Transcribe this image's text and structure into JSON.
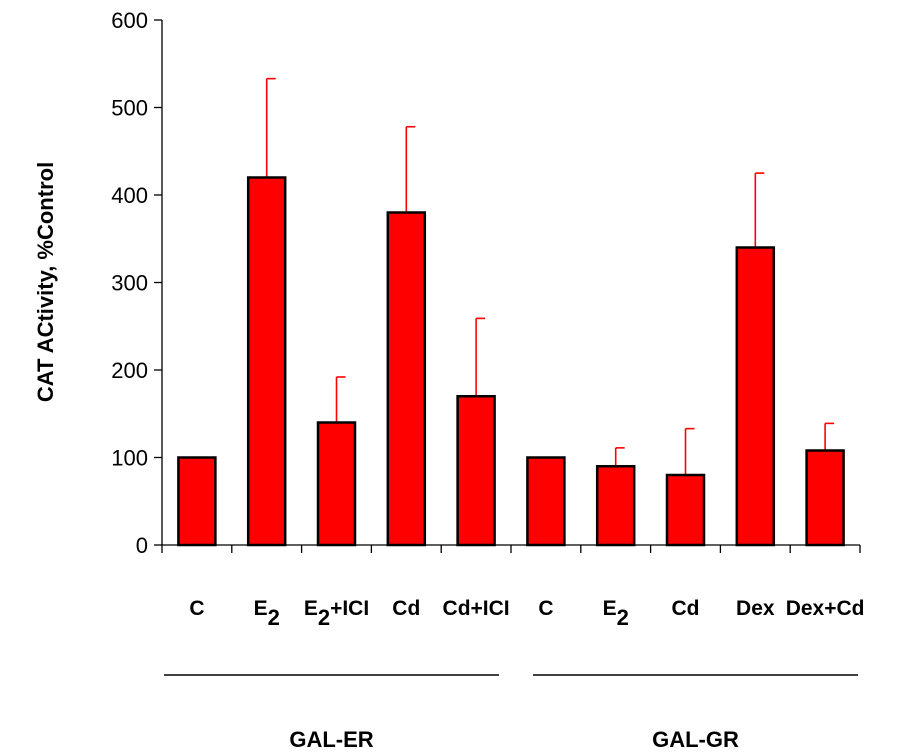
{
  "chart_data": {
    "type": "bar",
    "categories": [
      {
        "main": "C",
        "sub": "",
        "tail": ""
      },
      {
        "main": "E",
        "sub": "2",
        "tail": ""
      },
      {
        "main": "E",
        "sub": "2",
        "tail": "+ICI"
      },
      {
        "main": "Cd",
        "sub": "",
        "tail": ""
      },
      {
        "main": "Cd+ICI",
        "sub": "",
        "tail": ""
      },
      {
        "main": "C",
        "sub": "",
        "tail": ""
      },
      {
        "main": "E",
        "sub": "2",
        "tail": ""
      },
      {
        "main": "Cd",
        "sub": "",
        "tail": ""
      },
      {
        "main": "Dex",
        "sub": "",
        "tail": ""
      },
      {
        "main": "Dex+Cd",
        "sub": "",
        "tail": ""
      }
    ],
    "values": [
      100,
      420,
      140,
      380,
      170,
      100,
      90,
      80,
      340,
      108
    ],
    "error_upper": [
      100,
      533,
      192,
      478,
      259,
      100,
      111,
      133,
      425,
      139
    ],
    "ylabel": "CAT ACtivity, %Control",
    "ylim": [
      0,
      600
    ],
    "yticks": [
      "0",
      "100",
      "200",
      "300",
      "400",
      "500",
      "600"
    ],
    "groups": [
      {
        "label": "GAL-ER",
        "start": 0,
        "end": 4
      },
      {
        "label": "GAL-GR",
        "start": 5,
        "end": 9
      }
    ],
    "bar_color": "#ff0000",
    "error_color": "#ff0000",
    "grid": false
  }
}
